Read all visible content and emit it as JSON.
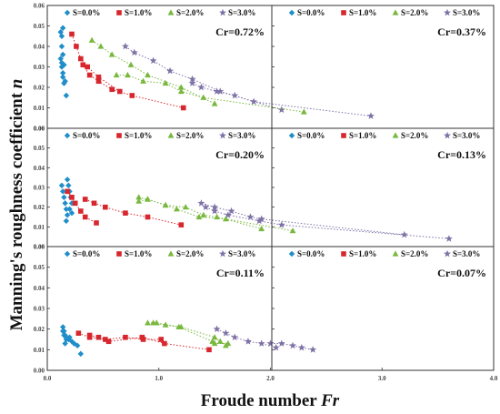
{
  "axes": {
    "xlabel": "Froude number",
    "xlabel_italic": "Fr",
    "ylabel": "Manning's roughness coefficient",
    "ylabel_italic": "n",
    "x_ticks": [
      "0.0",
      "1.0",
      "2.0",
      "3.0",
      "4.0"
    ],
    "y_ticks": [
      "0.00",
      "0.01",
      "0.02",
      "0.03",
      "0.04",
      "0.05",
      "0.06"
    ]
  },
  "legend": [
    {
      "label": "S=0.0%",
      "marker": "diamond",
      "color": "#1f8ec9"
    },
    {
      "label": "S=1.0%",
      "marker": "square",
      "color": "#d7262d"
    },
    {
      "label": "S=2.0%",
      "marker": "triangle",
      "color": "#79b83e"
    },
    {
      "label": "S=3.0%",
      "marker": "star",
      "color": "#7e72a6"
    }
  ],
  "chart_data": [
    {
      "type": "scatter",
      "title": "Cr=0.72%",
      "xlim": [
        0,
        4
      ],
      "ylim": [
        0,
        0.06
      ],
      "series": [
        {
          "name": "S=0.0%",
          "points": [
            [
              0.14,
              0.049
            ],
            [
              0.13,
              0.045
            ],
            [
              0.13,
              0.04
            ],
            [
              0.14,
              0.036
            ],
            [
              0.15,
              0.031
            ],
            [
              0.16,
              0.023
            ],
            [
              0.12,
              0.047
            ]
          ]
        },
        {
          "name": "S=1.0%",
          "points": [
            [
              0.22,
              0.046
            ],
            [
              0.26,
              0.04
            ],
            [
              0.3,
              0.034
            ],
            [
              0.36,
              0.03
            ],
            [
              0.46,
              0.025
            ],
            [
              0.65,
              0.018
            ]
          ]
        },
        {
          "name": "S=2.0%",
          "points": [
            [
              0.4,
              0.043
            ],
            [
              0.48,
              0.04
            ],
            [
              0.58,
              0.036
            ],
            [
              0.75,
              0.031
            ],
            [
              0.9,
              0.026
            ],
            [
              1.2,
              0.02
            ],
            [
              1.5,
              0.012
            ]
          ]
        },
        {
          "name": "S=3.0%",
          "points": [
            [
              0.7,
              0.04
            ],
            [
              0.78,
              0.037
            ],
            [
              0.95,
              0.033
            ],
            [
              1.1,
              0.028
            ],
            [
              1.3,
              0.024
            ],
            [
              1.55,
              0.018
            ],
            [
              2.1,
              0.009
            ]
          ]
        }
      ]
    },
    {
      "type": "scatter",
      "title": "Cr=0.37%",
      "xlim": [
        0,
        4
      ],
      "ylim": [
        0,
        0.06
      ],
      "series": [
        {
          "name": "S=0.0%",
          "points": [
            [
              0.12,
              0.034
            ],
            [
              0.13,
              0.03
            ],
            [
              0.14,
              0.027
            ],
            [
              0.14,
              0.025
            ],
            [
              0.15,
              0.022
            ],
            [
              0.17,
              0.016
            ],
            [
              0.13,
              0.032
            ]
          ]
        },
        {
          "name": "S=1.0%",
          "points": [
            [
              0.32,
              0.031
            ],
            [
              0.38,
              0.026
            ],
            [
              0.46,
              0.023
            ],
            [
              0.58,
              0.019
            ],
            [
              0.76,
              0.016
            ],
            [
              1.22,
              0.01
            ]
          ]
        },
        {
          "name": "S=2.0%",
          "points": [
            [
              0.62,
              0.026
            ],
            [
              0.72,
              0.026
            ],
            [
              0.86,
              0.023
            ],
            [
              1.06,
              0.022
            ],
            [
              1.2,
              0.018
            ],
            [
              1.4,
              0.015
            ],
            [
              2.3,
              0.008
            ]
          ]
        },
        {
          "name": "S=3.0%",
          "points": [
            [
              1.3,
              0.022
            ],
            [
              1.38,
              0.02
            ],
            [
              1.52,
              0.018
            ],
            [
              1.68,
              0.016
            ],
            [
              1.85,
              0.013
            ],
            [
              2.9,
              0.006
            ]
          ]
        }
      ]
    },
    {
      "type": "scatter",
      "title": "Cr=0.20%",
      "xlim": [
        0,
        4
      ],
      "ylim": [
        0,
        0.06
      ],
      "series": [
        {
          "name": "S=0.0%",
          "points": [
            [
              0.18,
              0.034
            ],
            [
              0.19,
              0.031
            ],
            [
              0.2,
              0.028
            ],
            [
              0.21,
              0.025
            ],
            [
              0.22,
              0.022
            ],
            [
              0.2,
              0.019
            ],
            [
              0.22,
              0.017
            ]
          ]
        },
        {
          "name": "S=1.0%",
          "points": [
            [
              0.18,
              0.028
            ],
            [
              0.22,
              0.025
            ],
            [
              0.25,
              0.022
            ],
            [
              0.3,
              0.018
            ],
            [
              0.34,
              0.015
            ],
            [
              0.44,
              0.012
            ]
          ]
        },
        {
          "name": "S=2.0%",
          "points": [
            [
              0.82,
              0.023
            ],
            [
              0.9,
              0.024
            ],
            [
              1.06,
              0.021
            ],
            [
              1.16,
              0.019
            ],
            [
              1.36,
              0.015
            ],
            [
              1.6,
              0.014
            ],
            [
              2.2,
              0.008
            ]
          ]
        },
        {
          "name": "S=3.0%",
          "points": [
            [
              1.42,
              0.02
            ],
            [
              1.5,
              0.018
            ],
            [
              1.62,
              0.016
            ],
            [
              1.9,
              0.013
            ],
            [
              2.1,
              0.011
            ],
            [
              3.6,
              0.004
            ]
          ]
        }
      ]
    },
    {
      "type": "scatter",
      "title": "Cr=0.13%",
      "xlim": [
        0,
        4
      ],
      "ylim": [
        0,
        0.06
      ],
      "series": [
        {
          "name": "S=0.0%",
          "points": [
            [
              0.13,
              0.031
            ],
            [
              0.14,
              0.028
            ],
            [
              0.15,
              0.025
            ],
            [
              0.16,
              0.022
            ],
            [
              0.17,
              0.019
            ],
            [
              0.18,
              0.016
            ],
            [
              0.17,
              0.013
            ]
          ]
        },
        {
          "name": "S=1.0%",
          "points": [
            [
              0.34,
              0.024
            ],
            [
              0.42,
              0.022
            ],
            [
              0.52,
              0.02
            ],
            [
              0.7,
              0.017
            ],
            [
              0.9,
              0.015
            ],
            [
              1.2,
              0.011
            ]
          ]
        },
        {
          "name": "S=2.0%",
          "points": [
            [
              0.82,
              0.025
            ],
            [
              0.9,
              0.024
            ],
            [
              1.06,
              0.021
            ],
            [
              1.24,
              0.02
            ],
            [
              1.4,
              0.016
            ],
            [
              1.52,
              0.015
            ],
            [
              1.92,
              0.009
            ]
          ]
        },
        {
          "name": "S=3.0%",
          "points": [
            [
              1.38,
              0.022
            ],
            [
              1.5,
              0.02
            ],
            [
              1.65,
              0.018
            ],
            [
              1.82,
              0.015
            ],
            [
              1.92,
              0.014
            ],
            [
              3.2,
              0.006
            ]
          ]
        }
      ]
    },
    {
      "type": "scatter",
      "title": "Cr=0.11%",
      "xlim": [
        0,
        4
      ],
      "ylim": [
        0,
        0.06
      ],
      "series": [
        {
          "name": "S=0.0%",
          "points": [
            [
              0.14,
              0.021
            ],
            [
              0.15,
              0.019
            ],
            [
              0.16,
              0.017
            ],
            [
              0.17,
              0.015
            ],
            [
              0.16,
              0.013
            ],
            [
              0.2,
              0.016
            ],
            [
              0.3,
              0.008
            ]
          ]
        },
        {
          "name": "S=1.0%",
          "points": [
            [
              0.38,
              0.017
            ],
            [
              0.46,
              0.016
            ],
            [
              0.55,
              0.014
            ],
            [
              0.85,
              0.016
            ],
            [
              1.05,
              0.013
            ],
            [
              1.45,
              0.01
            ]
          ]
        },
        {
          "name": "S=2.0%",
          "points": [
            [
              0.9,
              0.023
            ],
            [
              0.98,
              0.023
            ],
            [
              1.18,
              0.021
            ],
            [
              1.48,
              0.014
            ],
            [
              1.5,
              0.013
            ],
            [
              1.62,
              0.013
            ]
          ]
        },
        {
          "name": "S=3.0%",
          "points": [
            [
              2.0,
              0.013
            ],
            [
              2.1,
              0.013
            ],
            [
              2.2,
              0.012
            ],
            [
              2.28,
              0.011
            ],
            [
              2.38,
              0.01
            ]
          ]
        }
      ]
    },
    {
      "type": "scatter",
      "title": "Cr=0.07%",
      "xlim": [
        0,
        4
      ],
      "ylim": [
        0,
        0.06
      ],
      "series": [
        {
          "name": "S=0.0%",
          "points": [
            [
              0.14,
              0.019
            ],
            [
              0.15,
              0.017
            ],
            [
              0.17,
              0.016
            ],
            [
              0.19,
              0.015
            ],
            [
              0.22,
              0.014
            ],
            [
              0.24,
              0.013
            ],
            [
              0.27,
              0.012
            ]
          ]
        },
        {
          "name": "S=1.0%",
          "points": [
            [
              0.28,
              0.018
            ],
            [
              0.38,
              0.016
            ],
            [
              0.52,
              0.015
            ],
            [
              0.7,
              0.016
            ],
            [
              0.86,
              0.015
            ],
            [
              1.02,
              0.015
            ]
          ]
        },
        {
          "name": "S=2.0%",
          "points": [
            [
              0.95,
              0.023
            ],
            [
              1.06,
              0.022
            ],
            [
              1.2,
              0.021
            ],
            [
              1.5,
              0.016
            ],
            [
              1.55,
              0.014
            ],
            [
              1.6,
              0.012
            ]
          ]
        },
        {
          "name": "S=3.0%",
          "points": [
            [
              1.52,
              0.02
            ],
            [
              1.6,
              0.018
            ],
            [
              1.68,
              0.016
            ],
            [
              1.8,
              0.014
            ],
            [
              1.92,
              0.013
            ],
            [
              2.05,
              0.011
            ]
          ]
        }
      ]
    }
  ]
}
